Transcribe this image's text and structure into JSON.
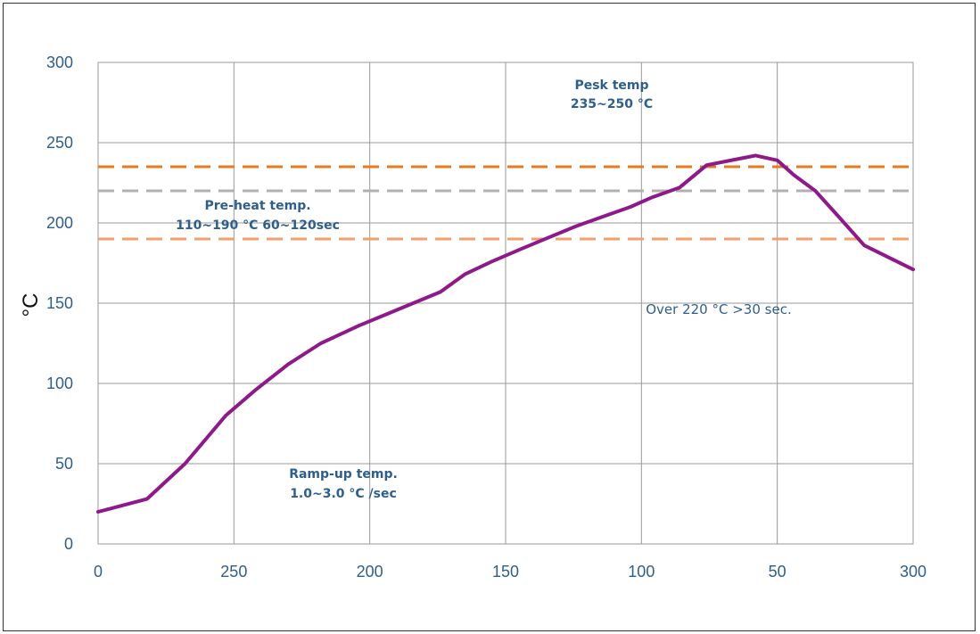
{
  "chart_data": {
    "type": "line",
    "ylabel": "°C",
    "xlabel": "",
    "x_tick_labels": [
      "0",
      "250",
      "200",
      "150",
      "100",
      "50",
      "300"
    ],
    "y_ticks": [
      0,
      50,
      100,
      150,
      200,
      250,
      300
    ],
    "ylim": [
      0,
      300
    ],
    "xlim": [
      0,
      300
    ],
    "grid": true,
    "series": [
      {
        "color": "#8e1a8a",
        "x": [
          0,
          18,
          32,
          47,
          58,
          70,
          82,
          96,
          106,
          116,
          126,
          135,
          145,
          156,
          166,
          176,
          186,
          196,
          204,
          214,
          224,
          236,
          242,
          250,
          256,
          264,
          272,
          282,
          300
        ],
        "y": [
          20,
          28,
          50,
          80,
          96,
          112,
          125,
          136,
          143,
          150,
          157,
          168,
          176,
          184,
          191,
          198,
          204,
          210,
          216,
          222,
          236,
          240,
          242,
          239,
          230,
          220,
          205,
          186,
          171
        ]
      }
    ],
    "reference_lines": [
      {
        "y": 235,
        "color": "#e8791e"
      },
      {
        "y": 220,
        "color": "#b0b0b0"
      },
      {
        "y": 190,
        "color": "#f0a070"
      }
    ],
    "annotations": [
      {
        "lines": [
          "Pesk temp",
          "235~250 °C"
        ]
      },
      {
        "lines": [
          "Pre-heat temp.",
          "110~190 °C 60~120sec"
        ]
      },
      {
        "lines": [
          "Over 220 °C >30 sec."
        ]
      },
      {
        "lines": [
          "Ramp-up temp.",
          "1.0~3.0 °C /sec"
        ]
      }
    ]
  }
}
